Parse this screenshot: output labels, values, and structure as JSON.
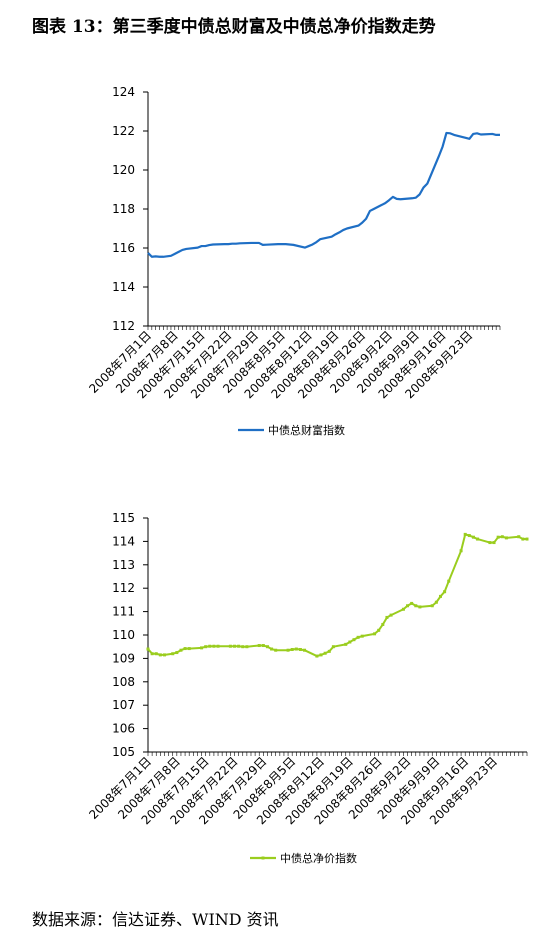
{
  "title": "图表 13：第三季度中债总财富及中债总净价指数走势",
  "source": "数据来源：信达证券、WIND 资讯",
  "chart_data": [
    {
      "type": "line",
      "title": "",
      "color": "#1f6fc5",
      "legend": "top-center-below-axis",
      "grid": false,
      "categories": [
        "2008年7月1日",
        "2008年7月8日",
        "2008年7月15日",
        "2008年7月22日",
        "2008年7月29日",
        "2008年8月5日",
        "2008年8月12日",
        "2008年8月19日",
        "2008年8月26日",
        "2008年9月2日",
        "2008年9月9日",
        "2008年9月16日",
        "2008年9月23日"
      ],
      "ylim": [
        112,
        124
      ],
      "yticks": [
        112,
        114,
        116,
        118,
        120,
        122,
        124
      ],
      "xlim": [
        0,
        92
      ],
      "series": [
        {
          "name": "中债总财富指数",
          "x": [
            0,
            1,
            2,
            3,
            4,
            6,
            7,
            8,
            9,
            10,
            13,
            14,
            15,
            16,
            17,
            20,
            21,
            22,
            23,
            24,
            27,
            28,
            29,
            30,
            31,
            34,
            35,
            36,
            37,
            38,
            41,
            42,
            43,
            44,
            45,
            48,
            49,
            50,
            51,
            52,
            55,
            56,
            57,
            58,
            59,
            62,
            63,
            64,
            65,
            66,
            69,
            70,
            71,
            72,
            73,
            76,
            77,
            78,
            79,
            80,
            83,
            84,
            85,
            86,
            87,
            90,
            91,
            92
          ],
          "y": [
            115.75,
            115.55,
            115.57,
            115.55,
            115.55,
            115.6,
            115.7,
            115.8,
            115.9,
            115.95,
            116.02,
            116.1,
            116.1,
            116.15,
            116.18,
            116.2,
            116.2,
            116.22,
            116.22,
            116.24,
            116.26,
            116.26,
            116.26,
            116.16,
            116.17,
            116.2,
            116.2,
            116.2,
            116.18,
            116.16,
            116.02,
            116.1,
            116.18,
            116.3,
            116.45,
            116.58,
            116.7,
            116.8,
            116.92,
            117.0,
            117.15,
            117.3,
            117.5,
            117.9,
            118.0,
            118.3,
            118.45,
            118.62,
            118.52,
            118.5,
            118.55,
            118.58,
            118.75,
            119.1,
            119.3,
            120.7,
            121.2,
            121.9,
            121.88,
            121.8,
            121.65,
            121.6,
            121.85,
            121.88,
            121.82,
            121.85,
            121.8,
            121.8
          ]
        }
      ]
    },
    {
      "type": "line",
      "title": "",
      "color": "#9acd1e",
      "legend": "bottom-center",
      "grid": false,
      "categories": [
        "2008年7月1日",
        "2008年7月8日",
        "2008年7月15日",
        "2008年7月22日",
        "2008年7月29日",
        "2008年8月5日",
        "2008年8月12日",
        "2008年8月19日",
        "2008年8月26日",
        "2008年9月2日",
        "2008年9月9日",
        "2008年9月16日",
        "2008年9月23日"
      ],
      "ylim": [
        105,
        115
      ],
      "yticks": [
        105,
        106,
        107,
        108,
        109,
        110,
        111,
        112,
        113,
        114,
        115
      ],
      "xlim": [
        0,
        92
      ],
      "series": [
        {
          "name": "中债总净价指数",
          "x": [
            0,
            1,
            2,
            3,
            4,
            6,
            7,
            8,
            9,
            10,
            13,
            14,
            15,
            16,
            17,
            20,
            21,
            22,
            23,
            24,
            27,
            28,
            29,
            30,
            31,
            34,
            35,
            36,
            37,
            38,
            41,
            42,
            43,
            44,
            45,
            48,
            49,
            50,
            51,
            52,
            55,
            56,
            57,
            58,
            59,
            62,
            63,
            64,
            65,
            66,
            69,
            70,
            71,
            72,
            73,
            76,
            77,
            78,
            79,
            80,
            83,
            84,
            85,
            86,
            87,
            90,
            91,
            92
          ],
          "y": [
            109.4,
            109.2,
            109.2,
            109.15,
            109.15,
            109.2,
            109.25,
            109.35,
            109.42,
            109.42,
            109.45,
            109.5,
            109.52,
            109.52,
            109.52,
            109.52,
            109.52,
            109.52,
            109.5,
            109.5,
            109.55,
            109.55,
            109.5,
            109.4,
            109.35,
            109.35,
            109.38,
            109.4,
            109.38,
            109.35,
            109.1,
            109.15,
            109.22,
            109.3,
            109.5,
            109.6,
            109.7,
            109.8,
            109.9,
            109.95,
            110.05,
            110.2,
            110.45,
            110.75,
            110.85,
            111.1,
            111.25,
            111.35,
            111.25,
            111.2,
            111.25,
            111.4,
            111.65,
            111.85,
            112.3,
            113.6,
            114.3,
            114.25,
            114.18,
            114.1,
            113.95,
            113.95,
            114.18,
            114.2,
            114.15,
            114.2,
            114.1,
            114.1
          ]
        }
      ]
    }
  ]
}
